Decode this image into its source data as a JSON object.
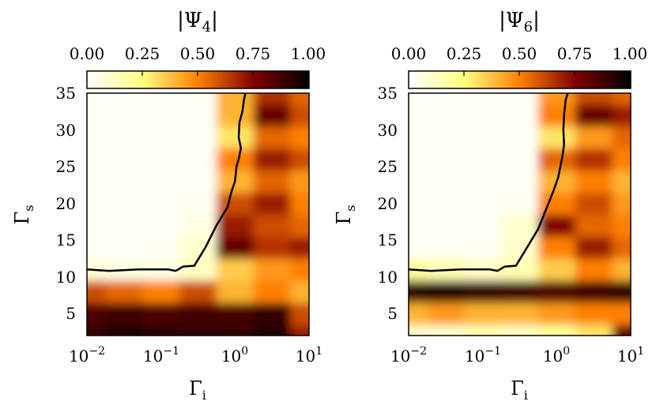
{
  "chart_data": [
    {
      "type": "heatmap",
      "title": "|Ψ4|",
      "title_parts": {
        "base": "|Ψ",
        "sub": "4",
        "end": "|"
      },
      "colorbar": {
        "range": [
          0,
          1
        ],
        "ticks": [
          "0.00",
          "0.25",
          "0.50",
          "0.75",
          "1.00"
        ],
        "colormap": "afmhot_r"
      },
      "xlabel": {
        "base": "Γ",
        "sub": "i"
      },
      "ylabel": {
        "base": "Γ",
        "sub": "s"
      },
      "x_scale": "log",
      "xlim": [
        0.01,
        10
      ],
      "x_ticks": [
        {
          "base": "10",
          "exp": "−2"
        },
        {
          "base": "10",
          "exp": "−1"
        },
        {
          "base": "10",
          "exp": "0"
        },
        {
          "base": "10",
          "exp": "1"
        }
      ],
      "ylim": [
        2,
        35
      ],
      "y_ticks": [
        "5",
        "10",
        "15",
        "20",
        "25",
        "30",
        "35"
      ],
      "y_tick_values": [
        5,
        10,
        15,
        20,
        25,
        30,
        35
      ],
      "log10_x_grid": [
        -2,
        -1.5,
        -1,
        -0.5,
        0,
        0.5,
        1
      ],
      "y_grid": [
        2,
        5,
        8,
        11,
        14,
        17,
        20,
        23,
        26,
        29,
        32,
        35
      ],
      "z": [
        [
          0.9,
          0.95,
          0.92,
          0.9,
          0.9,
          0.93,
          0.7
        ],
        [
          0.85,
          0.88,
          0.85,
          0.87,
          0.86,
          0.9,
          0.6
        ],
        [
          0.6,
          0.55,
          0.5,
          0.6,
          0.4,
          0.5,
          0.4
        ],
        [
          0.08,
          0.06,
          0.05,
          0.12,
          0.35,
          0.45,
          0.5
        ],
        [
          0.02,
          0.02,
          0.03,
          0.1,
          0.8,
          0.65,
          0.7
        ],
        [
          0.02,
          0.02,
          0.02,
          0.05,
          0.7,
          0.6,
          0.55
        ],
        [
          0.02,
          0.02,
          0.02,
          0.03,
          0.6,
          0.7,
          0.5
        ],
        [
          0.02,
          0.02,
          0.02,
          0.02,
          0.4,
          0.55,
          0.45
        ],
        [
          0.02,
          0.02,
          0.02,
          0.02,
          0.5,
          0.7,
          0.6
        ],
        [
          0.02,
          0.02,
          0.02,
          0.02,
          0.3,
          0.55,
          0.5
        ],
        [
          0.02,
          0.02,
          0.02,
          0.02,
          0.4,
          0.8,
          0.6
        ],
        [
          0.02,
          0.02,
          0.02,
          0.02,
          0.4,
          0.65,
          0.55
        ]
      ],
      "boundary": {
        "log10_x": [
          -2,
          -1.7,
          -1.3,
          -0.9,
          -0.8,
          -0.7,
          -0.55,
          -0.4,
          -0.25,
          -0.1,
          -0.05,
          0,
          0.02,
          0.05,
          0.08,
          0.05,
          0.06,
          0.1,
          0.12,
          0.14
        ],
        "y": [
          11,
          10.8,
          11,
          11,
          10.8,
          11.4,
          11.5,
          14,
          17,
          19.5,
          21.5,
          23,
          25,
          26,
          27.5,
          29,
          31,
          32.5,
          34,
          35
        ]
      }
    },
    {
      "type": "heatmap",
      "title": "|Ψ6|",
      "title_parts": {
        "base": "|Ψ",
        "sub": "6",
        "end": "|"
      },
      "colorbar": {
        "range": [
          0,
          1
        ],
        "ticks": [
          "0.00",
          "0.25",
          "0.50",
          "0.75",
          "1.00"
        ],
        "colormap": "afmhot_r"
      },
      "xlabel": {
        "base": "Γ",
        "sub": "i"
      },
      "ylabel": {
        "base": "Γ",
        "sub": "s"
      },
      "x_scale": "log",
      "xlim": [
        0.01,
        10
      ],
      "x_ticks": [
        {
          "base": "10",
          "exp": "−2"
        },
        {
          "base": "10",
          "exp": "−1"
        },
        {
          "base": "10",
          "exp": "0"
        },
        {
          "base": "10",
          "exp": "1"
        }
      ],
      "ylim": [
        2,
        35
      ],
      "y_ticks": [
        "5",
        "10",
        "15",
        "20",
        "25",
        "30",
        "35"
      ],
      "y_tick_values": [
        5,
        10,
        15,
        20,
        25,
        30,
        35
      ],
      "log10_x_grid": [
        -2,
        -1.5,
        -1,
        -0.5,
        0,
        0.5,
        1
      ],
      "y_grid": [
        2,
        5,
        8,
        11,
        14,
        17,
        20,
        23,
        26,
        29,
        32,
        35
      ],
      "z": [
        [
          0.1,
          0.1,
          0.15,
          0.12,
          0.2,
          0.3,
          0.8
        ],
        [
          0.4,
          0.45,
          0.4,
          0.4,
          0.45,
          0.5,
          0.5
        ],
        [
          0.92,
          0.95,
          0.9,
          0.88,
          0.85,
          0.88,
          0.9
        ],
        [
          0.2,
          0.15,
          0.12,
          0.15,
          0.35,
          0.5,
          0.4
        ],
        [
          0.02,
          0.02,
          0.03,
          0.1,
          0.5,
          0.7,
          0.55
        ],
        [
          0.02,
          0.02,
          0.02,
          0.1,
          0.75,
          0.55,
          0.5
        ],
        [
          0.02,
          0.02,
          0.02,
          0.03,
          0.5,
          0.6,
          0.45
        ],
        [
          0.02,
          0.02,
          0.02,
          0.02,
          0.4,
          0.5,
          0.4
        ],
        [
          0.02,
          0.02,
          0.02,
          0.02,
          0.55,
          0.65,
          0.5
        ],
        [
          0.02,
          0.02,
          0.02,
          0.02,
          0.3,
          0.45,
          0.55
        ],
        [
          0.02,
          0.02,
          0.02,
          0.02,
          0.5,
          0.8,
          0.7
        ],
        [
          0.02,
          0.02,
          0.02,
          0.02,
          0.45,
          0.6,
          0.55
        ]
      ],
      "boundary": {
        "log10_x": [
          -2,
          -1.7,
          -1.3,
          -0.9,
          -0.8,
          -0.7,
          -0.55,
          -0.4,
          -0.25,
          -0.15,
          -0.05,
          0.02,
          0.05,
          0.08,
          0.1,
          0.09,
          0.1,
          0.12,
          0.15
        ],
        "y": [
          11,
          10.8,
          11,
          11,
          10.8,
          11.4,
          11.5,
          14,
          16.5,
          19,
          21.5,
          23.5,
          25,
          26.5,
          28,
          30,
          32,
          34,
          35
        ]
      }
    }
  ]
}
